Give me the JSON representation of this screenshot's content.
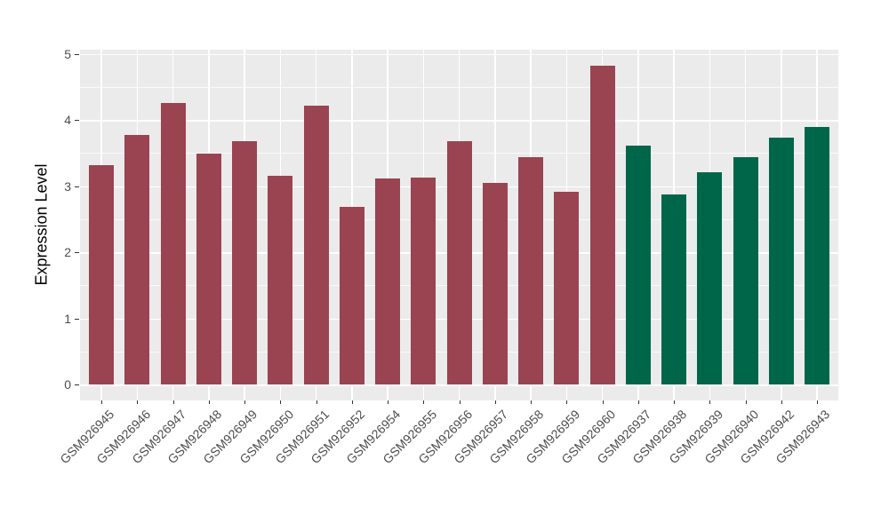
{
  "figure": {
    "background": "#FFFFFF",
    "panel_background": "#EBEBEB",
    "gridline_color": "#FFFFFF",
    "tick_mark_color": "#333333",
    "axis_text_color": "#4D4D4D",
    "axis_title_color": "#000000"
  },
  "chart_data": {
    "type": "bar",
    "title": "",
    "xlabel": "",
    "ylabel": "Expression Level",
    "legend_position": "none",
    "ylim": [
      0,
      5
    ],
    "yticks": [
      0,
      1,
      2,
      3,
      4,
      5
    ],
    "yticks_minor": [
      0.5,
      1.5,
      2.5,
      3.5,
      4.5
    ],
    "grid": {
      "horizontal_major": true,
      "horizontal_minor": true,
      "vertical_major_at_categories": true
    },
    "categories": [
      "GSM926945",
      "GSM926946",
      "GSM926947",
      "GSM926948",
      "GSM926949",
      "GSM926950",
      "GSM926951",
      "GSM926952",
      "GSM926954",
      "GSM926955",
      "GSM926956",
      "GSM926957",
      "GSM926958",
      "GSM926959",
      "GSM926960",
      "GSM926937",
      "GSM926938",
      "GSM926939",
      "GSM926940",
      "GSM926942",
      "GSM926943"
    ],
    "values": [
      3.32,
      3.77,
      4.25,
      3.49,
      3.68,
      3.16,
      4.22,
      2.68,
      3.11,
      3.13,
      3.68,
      3.05,
      3.44,
      2.91,
      4.82,
      3.61,
      2.88,
      3.21,
      3.44,
      3.73,
      3.9
    ],
    "groups": [
      "A",
      "A",
      "A",
      "A",
      "A",
      "A",
      "A",
      "A",
      "A",
      "A",
      "A",
      "A",
      "A",
      "A",
      "A",
      "B",
      "B",
      "B",
      "B",
      "B",
      "B"
    ],
    "group_colors": {
      "A": "#9A4351",
      "B": "#00664A"
    }
  }
}
